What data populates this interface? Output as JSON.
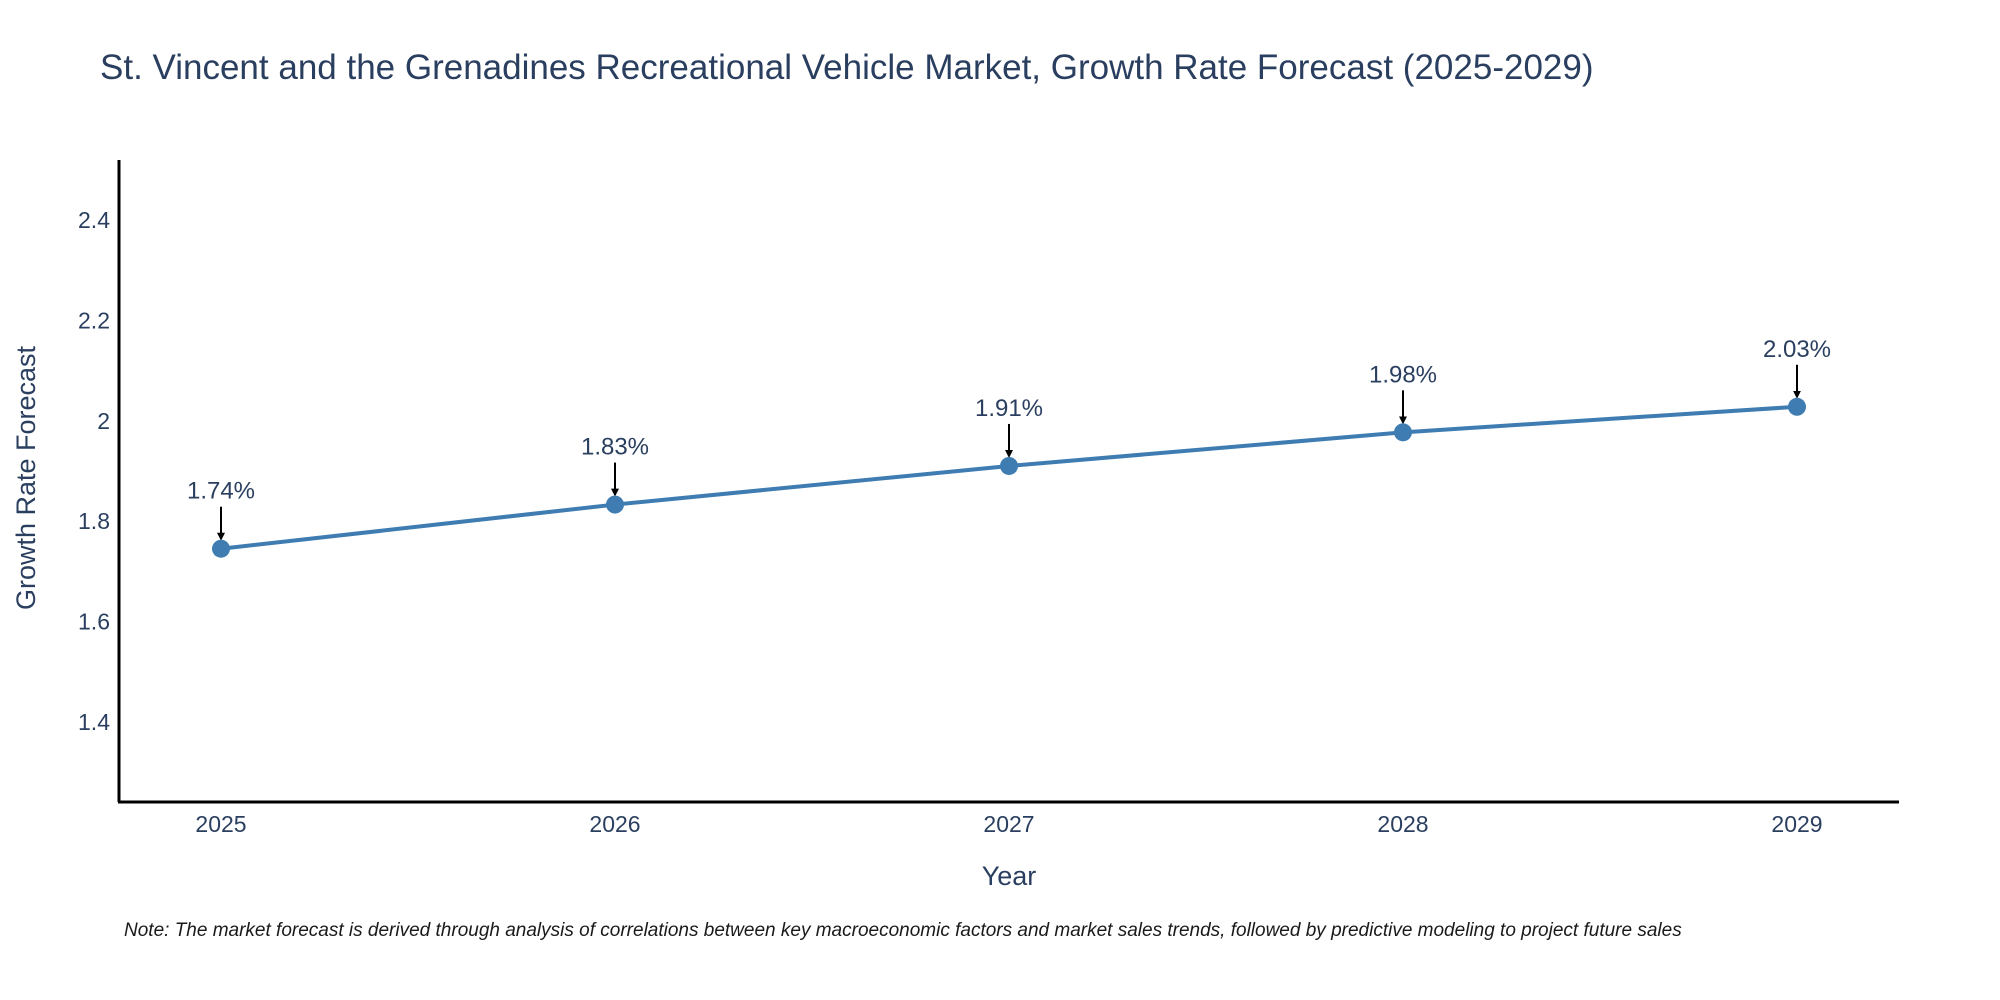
{
  "chart_data": {
    "type": "line",
    "title": "St. Vincent and the Grenadines Recreational Vehicle Market, Growth Rate Forecast (2025-2029)",
    "xlabel": "Year",
    "ylabel": "Growth Rate Forecast",
    "categories": [
      "2025",
      "2026",
      "2027",
      "2028",
      "2029"
    ],
    "series": [
      {
        "name": "Growth Rate Forecast",
        "values": [
          1.745,
          1.833,
          1.91,
          1.977,
          2.028
        ],
        "labels": [
          "1.74%",
          "1.83%",
          "1.91%",
          "1.98%",
          "2.03%"
        ]
      }
    ],
    "ylim": [
      1.24,
      2.52
    ],
    "yticks": [
      1.4,
      1.6,
      1.8,
      2.0,
      2.2,
      2.4
    ],
    "ytick_labels": [
      "1.4",
      "1.6",
      "1.8",
      "2",
      "2.2",
      "2.4"
    ],
    "grid": false,
    "legend": "none",
    "line_color": "#3e7cb1",
    "marker_color": "#3e7cb1",
    "arrow_color": "#000000",
    "note": "Note: The market forecast is derived through analysis of correlations between key macroeconomic factors and market sales trends, followed by predictive modeling to project future sales"
  }
}
